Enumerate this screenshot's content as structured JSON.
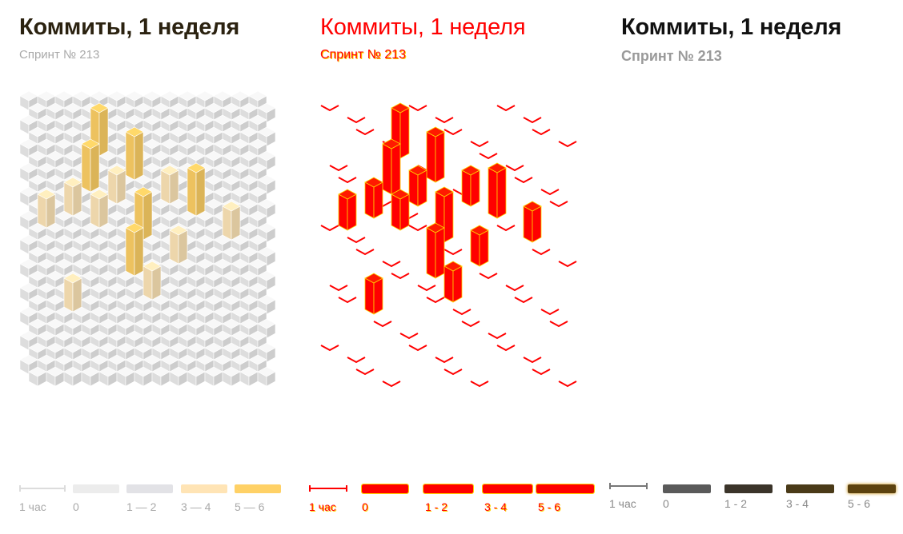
{
  "panels": [
    {
      "id": "plain",
      "title": "Коммиты, 1 неделя",
      "subtitle": "Спринт № 213",
      "legend": {
        "scale_label": "1 час",
        "ranges": [
          "0",
          "1 — 2",
          "3 — 4",
          "5 — 6"
        ],
        "colors": [
          "#ececec",
          "#e2e2e6",
          "#ffe4b5",
          "#ffd166"
        ],
        "text_color": "#a9a9a9"
      }
    },
    {
      "id": "edges",
      "title": "Коммиты, 1 неделя",
      "subtitle": "Спринт № 213",
      "legend": {
        "scale_label": "1 час",
        "ranges": [
          "0",
          "1 - 2",
          "3 - 4",
          "5 - 6"
        ],
        "colors": [
          "#ff0000",
          "#ff0000",
          "#ff0000",
          "#ff0000"
        ],
        "text_color": "#ff0000"
      }
    },
    {
      "id": "dark",
      "title": "Коммиты, 1 неделя",
      "subtitle": "Спринт № 213",
      "legend": {
        "scale_label": "1 час",
        "ranges": [
          "0",
          "1 - 2",
          "3 - 4",
          "5 - 6"
        ],
        "colors": [
          "#5a5a5a",
          "#3b342a",
          "#4a3a18",
          "#5c420e"
        ],
        "text_color": "#8a8a8a"
      }
    }
  ],
  "chart_data": {
    "type": "heatmap",
    "title": "Коммиты, 1 неделя",
    "subtitle": "Спринт № 213",
    "unit": "1 час",
    "legend_bins": [
      "0",
      "1 — 2",
      "3 — 4",
      "5 — 6"
    ],
    "columns": 14,
    "rows": 24,
    "cells": [
      {
        "col": 4,
        "row": 4,
        "value": 5
      },
      {
        "col": 6,
        "row": 6,
        "value": 5
      },
      {
        "col": 3,
        "row": 7,
        "value": 5
      },
      {
        "col": 5,
        "row": 8,
        "value": 3
      },
      {
        "col": 8,
        "row": 8,
        "value": 3
      },
      {
        "col": 2,
        "row": 9,
        "value": 3
      },
      {
        "col": 9,
        "row": 9,
        "value": 5
      },
      {
        "col": 1,
        "row": 10,
        "value": 3
      },
      {
        "col": 4,
        "row": 10,
        "value": 3
      },
      {
        "col": 6,
        "row": 11,
        "value": 5
      },
      {
        "col": 11,
        "row": 11,
        "value": 3
      },
      {
        "col": 8,
        "row": 13,
        "value": 3
      },
      {
        "col": 6,
        "row": 14,
        "value": 5
      },
      {
        "col": 7,
        "row": 16,
        "value": 3
      },
      {
        "col": 2,
        "row": 17,
        "value": 3
      }
    ]
  }
}
